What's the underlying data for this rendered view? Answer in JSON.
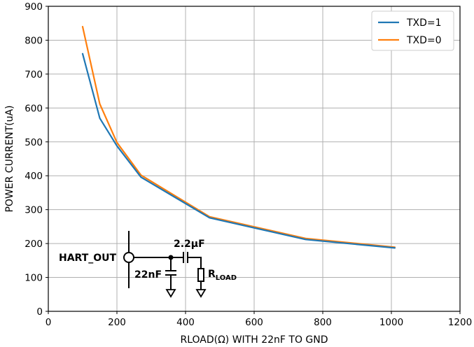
{
  "chart_data": {
    "type": "line",
    "title": "",
    "xlabel": "RLOAD(Ω) WITH 22nF TO GND",
    "ylabel": "POWER CURRENT(uA)",
    "xlim": [
      0,
      1200
    ],
    "ylim": [
      0,
      900
    ],
    "xticks": [
      0,
      200,
      400,
      600,
      800,
      1000,
      1200
    ],
    "yticks": [
      0,
      100,
      200,
      300,
      400,
      500,
      600,
      700,
      800,
      900
    ],
    "grid": true,
    "legend_position": "top-right",
    "series": [
      {
        "name": "TXD=1",
        "color": "#1f77b4",
        "x": [
          100,
          150,
          200,
          270,
          470,
          750,
          1010
        ],
        "y": [
          760,
          570,
          488,
          396,
          276,
          212,
          187
        ]
      },
      {
        "name": "TXD=0",
        "color": "#ff7f0e",
        "x": [
          100,
          150,
          200,
          270,
          470,
          750,
          1010
        ],
        "y": [
          840,
          612,
          498,
          402,
          279,
          215,
          189
        ]
      }
    ]
  },
  "inset": {
    "hart_out": "HART_OUT",
    "cap_series": "2.2µF",
    "cap_shunt": "22nF",
    "r_main": "R",
    "r_sub": "LOAD"
  }
}
